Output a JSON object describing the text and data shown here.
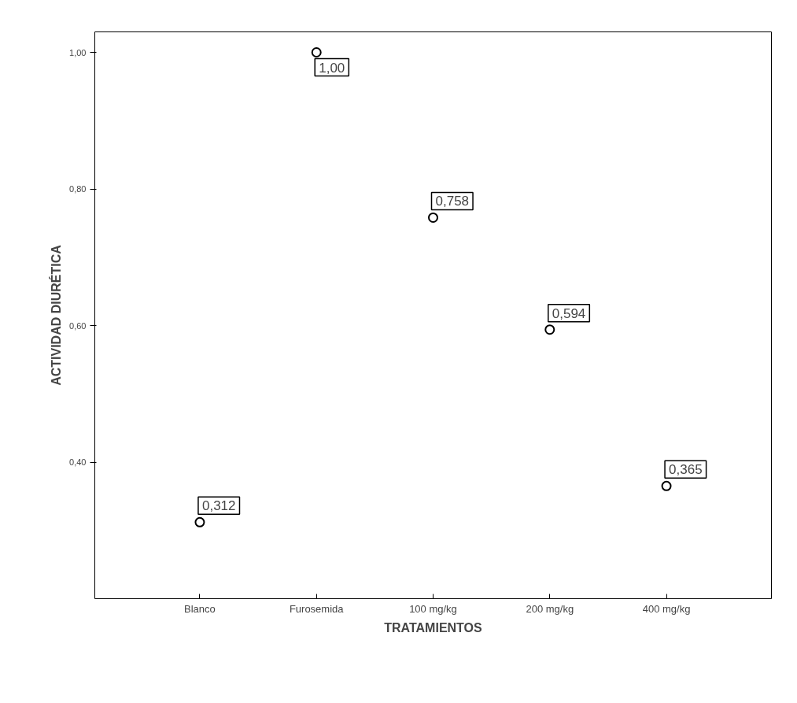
{
  "chart_data": {
    "type": "scatter",
    "xlabel": "TRATAMIENTOS",
    "ylabel": "ACTIVIDAD DIURÉTICA",
    "categories": [
      "Blanco",
      "Furosemida",
      "100 mg/kg",
      "200 mg/kg",
      "400 mg/kg"
    ],
    "values": [
      0.312,
      1.0,
      0.758,
      0.594,
      0.365
    ],
    "value_labels": [
      "0,312",
      "1,00",
      "0,758",
      "0,594",
      "0,365"
    ],
    "color": "#000000",
    "marker": "circle",
    "grid": false,
    "ylim": [
      0.2,
      1.03
    ],
    "yticks": [
      {
        "value": 0.4,
        "label": "0,40"
      },
      {
        "value": 0.6,
        "label": "0,60"
      },
      {
        "value": 0.8,
        "label": "0,80"
      },
      {
        "value": 1.0,
        "label": "1,00"
      }
    ]
  }
}
